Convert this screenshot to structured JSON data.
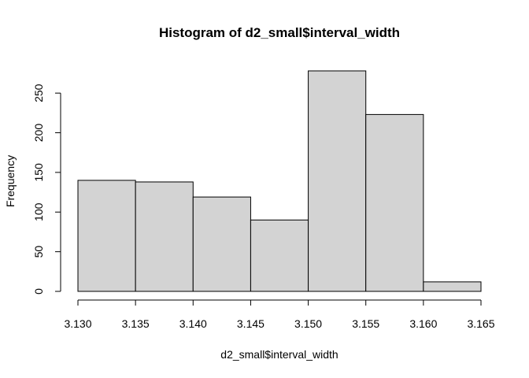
{
  "chart_data": {
    "type": "bar",
    "title": "Histogram of d2_small$interval_width",
    "xlabel": "d2_small$interval_width",
    "ylabel": "Frequency",
    "bins": [
      {
        "x0": 3.13,
        "x1": 3.135,
        "count": 140
      },
      {
        "x0": 3.135,
        "x1": 3.14,
        "count": 138
      },
      {
        "x0": 3.14,
        "x1": 3.145,
        "count": 119
      },
      {
        "x0": 3.145,
        "x1": 3.15,
        "count": 90
      },
      {
        "x0": 3.15,
        "x1": 3.155,
        "count": 278
      },
      {
        "x0": 3.155,
        "x1": 3.16,
        "count": 223
      },
      {
        "x0": 3.16,
        "x1": 3.165,
        "count": 12
      }
    ],
    "xlim": [
      3.13,
      3.165
    ],
    "ylim": [
      0,
      278
    ],
    "x_ticks": [
      "3.130",
      "3.135",
      "3.140",
      "3.145",
      "3.150",
      "3.155",
      "3.160",
      "3.165"
    ],
    "y_ticks": [
      "0",
      "50",
      "100",
      "150",
      "200",
      "250"
    ],
    "bar_fill": "#d3d3d3",
    "bar_stroke": "#000000",
    "grid": false,
    "legend": "none"
  }
}
